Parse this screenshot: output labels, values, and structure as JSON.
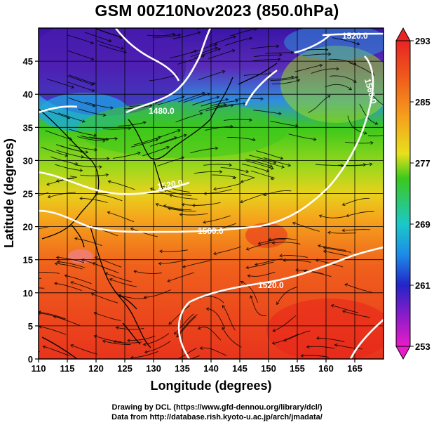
{
  "title": "GSM 00Z10Nov2023 (850.0hPa)",
  "map": {
    "x_axis_label": "Longitude (degrees)",
    "y_axis_label": "Latitude  (degrees)",
    "lon_range": [
      110,
      170
    ],
    "lat_range": [
      0,
      50
    ],
    "x_ticks": [
      "110",
      "115",
      "120",
      "125",
      "130",
      "135",
      "140",
      "145",
      "150",
      "155",
      "160",
      "165"
    ],
    "y_ticks": [
      "0",
      "5",
      "10",
      "15",
      "20",
      "25",
      "30",
      "35",
      "40",
      "45"
    ],
    "colorbar_ticks": [
      "293",
      "285",
      "277",
      "269",
      "261",
      "253"
    ],
    "colorbar_range": [
      253,
      293
    ],
    "colors": {
      "warm": "#e8341c",
      "orange": "#f57a1c",
      "yellow": "#e8e21c",
      "green": "#3cc81c",
      "cyan": "#1ca8e8",
      "blue": "#2424c8",
      "purple": "#8c1cc8",
      "magenta": "#e81cc8",
      "contour": "#ffffff",
      "stream": "#000000"
    },
    "contour_labels": [
      "1520.0",
      "1560.0",
      "1480.0",
      "1520.0",
      "1560.0",
      "1520.0"
    ]
  },
  "credits": [
    "Drawing by DCL (https://www.gfd-dennou.org/library/dcl/)",
    "Data from http://database.rish.kyoto-u.ac.jp/arch/jmadata/"
  ]
}
